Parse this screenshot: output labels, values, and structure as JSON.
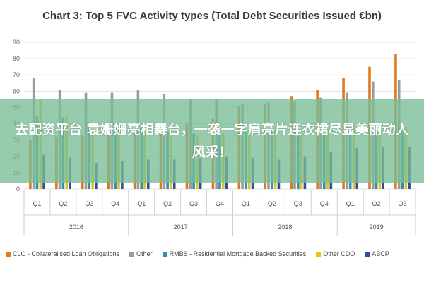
{
  "title": "Chart 3: Top 5 FVC Activity types (Total Debt Securities Issued €bn)",
  "overlay_text": "去配资平台 袁姗姗亮相舞台，一袭一字肩亮片连衣裙尽显美丽动人风采！",
  "chart_data": {
    "type": "bar",
    "title": "Chart 3: Top 5 FVC Activity types (Total Debt Securities Issued €bn)",
    "ylim": [
      0,
      90
    ],
    "yticks": [
      0,
      10,
      20,
      30,
      40,
      50,
      60,
      70,
      80,
      90
    ],
    "grid": true,
    "legend": "bottom",
    "categories": [
      "Q1",
      "Q2",
      "Q3",
      "Q4",
      "Q1",
      "Q2",
      "Q3",
      "Q4",
      "Q1",
      "Q2",
      "Q3",
      "Q4",
      "Q1",
      "Q2",
      "Q3"
    ],
    "years": [
      {
        "label": "2016",
        "start": 0,
        "count": 4
      },
      {
        "label": "2017",
        "start": 4,
        "count": 4
      },
      {
        "label": "2018",
        "start": 8,
        "count": 4
      },
      {
        "label": "2019",
        "start": 12,
        "count": 3
      }
    ],
    "series": [
      {
        "name": "CLO - Collateralised Loan Obligations",
        "color": "#e2781e",
        "values": [
          30,
          32,
          33,
          34,
          36,
          38,
          40,
          43,
          51,
          52,
          57,
          61,
          68,
          75,
          83
        ]
      },
      {
        "name": "Other",
        "color": "#9b9b9b",
        "values": [
          68,
          61,
          59,
          59,
          61,
          58,
          55,
          55,
          52,
          53,
          54,
          56,
          59,
          66,
          67
        ]
      },
      {
        "name": "RMBS - Residential Mortgage Backed Securities",
        "color": "#2e8fa8",
        "values": [
          45,
          44,
          41,
          38,
          37,
          35,
          34,
          33,
          36,
          35,
          33,
          34,
          35,
          36,
          35
        ]
      },
      {
        "name": "Other CDO",
        "color": "#e8c21e",
        "values": [
          55,
          45,
          40,
          38,
          37,
          34,
          33,
          34,
          35,
          36,
          34,
          36,
          37,
          36,
          38
        ]
      },
      {
        "name": "ABCP",
        "color": "#2d4f9e",
        "values": [
          21,
          19,
          16,
          17,
          18,
          18,
          19,
          20,
          19,
          18,
          20,
          23,
          25,
          26,
          26
        ]
      }
    ]
  }
}
